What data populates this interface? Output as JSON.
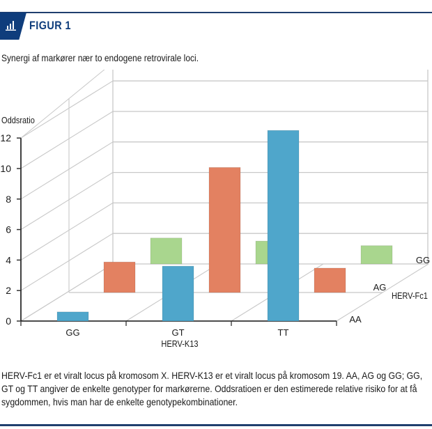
{
  "header": {
    "figure_label": "FIGUR 1",
    "icon": "bar-chart-icon",
    "accent_color": "#0f3d7c"
  },
  "subtitle": "Synergi af markører nær to endogene retrovirale loci.",
  "caption": "HERV-Fc1 er et viralt locus på kromosom X. HERV-K13 er et viralt locus på kromosom 19. AA, AG og GG; GG, GT og TT angiver de enkelte genotyper for markørerne. Oddsratioen er den estimerede relative risiko for at få sygdommen, hvis man har de enkelte genotypekombinationer.",
  "chart_data": {
    "type": "bar",
    "subtype": "3d-column",
    "title": "",
    "ylabel": "Oddsratio",
    "xlabel": "HERV-K13",
    "zlabel": "HERV-Fc1",
    "ylim": [
      0,
      12
    ],
    "yticks": [
      "0",
      "2",
      "4",
      "6",
      "8",
      "10",
      "12"
    ],
    "categories": [
      "GG",
      "GT",
      "TT"
    ],
    "series": [
      {
        "name": "AA",
        "color": "#4fa6cb",
        "values": [
          0.6,
          3.6,
          12.5
        ]
      },
      {
        "name": "AG",
        "color": "#e38161",
        "values": [
          2.0,
          8.2,
          1.6
        ]
      },
      {
        "name": "GG",
        "color": "#a9d68e",
        "values": [
          1.7,
          1.5,
          1.2
        ]
      }
    ],
    "grid": true
  }
}
